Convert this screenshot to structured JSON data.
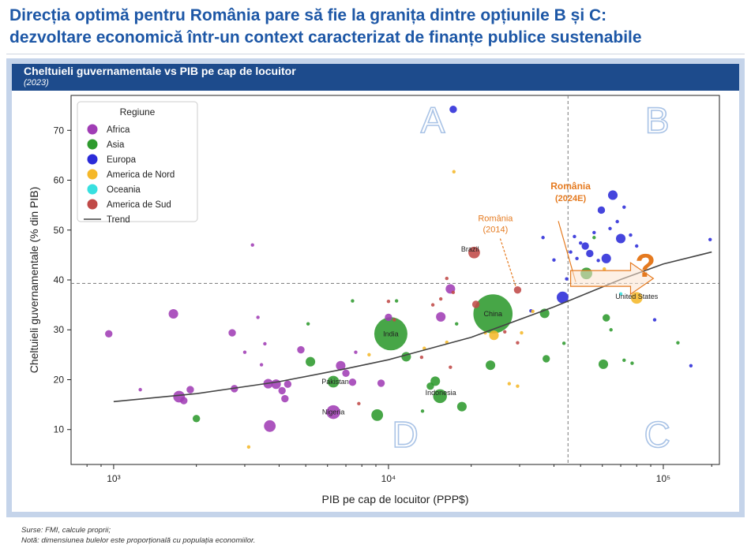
{
  "header": {
    "line1": "Direcția optimă pentru România pare să fie la granița dintre opțiunile B și C:",
    "line2": "dezvoltare economică într-un context caracterizat de finanțe publice sustenabile"
  },
  "panel": {
    "title": "Cheltuieli guvernamentale vs PIB pe cap de locuitor",
    "subtitle": "(2023)"
  },
  "footer": {
    "sources": "Surse: FMI, calcule proprii;",
    "note": "Notă: dimensiunea bulelor este proporțională cu populația economiilor."
  },
  "chart_data": {
    "type": "scatter",
    "xlabel": "PIB pe cap de locuitor (PPP$)",
    "ylabel": "Cheltuieli guvernamentale (% din PIB)",
    "x_scale": "log",
    "xlim": [
      700,
      160000
    ],
    "ylim": [
      3,
      77
    ],
    "x_ticks": [
      1000,
      10000,
      100000
    ],
    "x_tick_labels": [
      "10³",
      "10⁴",
      "10⁵"
    ],
    "y_ticks": [
      10,
      20,
      30,
      40,
      50,
      60,
      70
    ],
    "legend": {
      "title": "Regiune",
      "position": "top-left",
      "entries": [
        "Africa",
        "Asia",
        "Europa",
        "America de Nord",
        "Oceania",
        "America de Sud",
        "Trend"
      ]
    },
    "colors": {
      "Africa": "#a03db5",
      "Asia": "#2e9a2e",
      "Europa": "#2b2bd8",
      "America de Nord": "#f5b82a",
      "Oceania": "#38e0e0",
      "America de Sud": "#c04a48",
      "Trend": "#444444",
      "annotation": "#e57a1f",
      "quadrant": "#a9c3e6"
    },
    "reference_lines": {
      "x": 45000,
      "y": 39.3
    },
    "quadrant_labels": [
      "A",
      "B",
      "C",
      "D"
    ],
    "trend": {
      "x": [
        1000,
        2000,
        4000,
        7000,
        10000,
        20000,
        40000,
        70000,
        100000,
        150000
      ],
      "y": [
        15.6,
        17.2,
        19.6,
        22.2,
        24.0,
        28.5,
        34.6,
        40.1,
        43.2,
        45.6
      ]
    },
    "annotations": {
      "romania_2014": [
        "România",
        "(2014)"
      ],
      "romania_2024": [
        "România",
        "(2024E)"
      ],
      "question": "?"
    },
    "country_labels": [
      "Brazil",
      "China",
      "India",
      "United States",
      "Pakistan",
      "Indonesia",
      "Nigeria"
    ],
    "points": [
      {
        "r": "Africa",
        "x": 960,
        "y": 29.2,
        "s": 2
      },
      {
        "r": "Africa",
        "x": 1250,
        "y": 18,
        "s": 1
      },
      {
        "r": "Africa",
        "x": 1650,
        "y": 33.2,
        "s": 3
      },
      {
        "r": "Africa",
        "x": 1730,
        "y": 16.6,
        "s": 4
      },
      {
        "r": "Africa",
        "x": 1800,
        "y": 15.8,
        "s": 2
      },
      {
        "r": "Africa",
        "x": 1900,
        "y": 18,
        "s": 2
      },
      {
        "r": "Africa",
        "x": 2700,
        "y": 29.4,
        "s": 2
      },
      {
        "r": "Africa",
        "x": 2750,
        "y": 18.2,
        "s": 2
      },
      {
        "r": "Africa",
        "x": 3000,
        "y": 25.5,
        "s": 1
      },
      {
        "r": "Africa",
        "x": 3200,
        "y": 47,
        "s": 1
      },
      {
        "r": "Africa",
        "x": 3350,
        "y": 32.5,
        "s": 1
      },
      {
        "r": "Africa",
        "x": 3450,
        "y": 23,
        "s": 1
      },
      {
        "r": "Africa",
        "x": 3550,
        "y": 27.2,
        "s": 1
      },
      {
        "r": "Africa",
        "x": 3650,
        "y": 19.2,
        "s": 3
      },
      {
        "r": "Africa",
        "x": 3700,
        "y": 10.7,
        "s": 4
      },
      {
        "r": "Africa",
        "x": 3900,
        "y": 19.1,
        "s": 3
      },
      {
        "r": "Africa",
        "x": 4100,
        "y": 17.8,
        "s": 2
      },
      {
        "r": "Africa",
        "x": 4200,
        "y": 16.2,
        "s": 2
      },
      {
        "r": "Africa",
        "x": 4300,
        "y": 19.1,
        "s": 2
      },
      {
        "r": "Africa",
        "x": 4800,
        "y": 26,
        "s": 2
      },
      {
        "r": "Africa",
        "x": 6300,
        "y": 13.5,
        "s": 5
      },
      {
        "r": "Africa",
        "x": 6700,
        "y": 22.8,
        "s": 3
      },
      {
        "r": "Africa",
        "x": 7000,
        "y": 21.3,
        "s": 2
      },
      {
        "r": "Africa",
        "x": 7400,
        "y": 19.5,
        "s": 2
      },
      {
        "r": "Africa",
        "x": 7600,
        "y": 25.5,
        "s": 1
      },
      {
        "r": "Africa",
        "x": 9400,
        "y": 19.3,
        "s": 2
      },
      {
        "r": "Africa",
        "x": 10000,
        "y": 32.5,
        "s": 2
      },
      {
        "r": "Africa",
        "x": 15500,
        "y": 32.6,
        "s": 3
      },
      {
        "r": "Africa",
        "x": 16800,
        "y": 38.2,
        "s": 3
      },
      {
        "r": "Asia",
        "x": 2000,
        "y": 12.2,
        "s": 2
      },
      {
        "r": "Asia",
        "x": 5100,
        "y": 31.2,
        "s": 1
      },
      {
        "r": "Asia",
        "x": 5200,
        "y": 23.6,
        "s": 3
      },
      {
        "r": "Asia",
        "x": 6300,
        "y": 19.6,
        "s": 4
      },
      {
        "r": "Asia",
        "x": 7400,
        "y": 35.8,
        "s": 1
      },
      {
        "r": "Asia",
        "x": 9100,
        "y": 12.9,
        "s": 4
      },
      {
        "r": "Asia",
        "x": 10200,
        "y": 29.2,
        "s": 10
      },
      {
        "r": "Asia",
        "x": 10700,
        "y": 35.8,
        "s": 1
      },
      {
        "r": "Asia",
        "x": 11600,
        "y": 24.6,
        "s": 3
      },
      {
        "r": "Asia",
        "x": 13300,
        "y": 13.7,
        "s": 1
      },
      {
        "r": "Asia",
        "x": 14200,
        "y": 18.7,
        "s": 2
      },
      {
        "r": "Asia",
        "x": 14800,
        "y": 19.7,
        "s": 3
      },
      {
        "r": "Asia",
        "x": 15400,
        "y": 16.7,
        "s": 5
      },
      {
        "r": "Asia",
        "x": 17700,
        "y": 31.2,
        "s": 1
      },
      {
        "r": "Asia",
        "x": 18500,
        "y": 14.6,
        "s": 3
      },
      {
        "r": "Asia",
        "x": 23500,
        "y": 22.9,
        "s": 3
      },
      {
        "r": "Asia",
        "x": 24000,
        "y": 33.2,
        "s": 12
      },
      {
        "r": "Asia",
        "x": 37000,
        "y": 33.3,
        "s": 3
      },
      {
        "r": "Asia",
        "x": 37500,
        "y": 24.2,
        "s": 2
      },
      {
        "r": "Asia",
        "x": 43500,
        "y": 27.3,
        "s": 1
      },
      {
        "r": "Asia",
        "x": 52500,
        "y": 41.3,
        "s": 4
      },
      {
        "r": "Asia",
        "x": 56000,
        "y": 48.5,
        "s": 1
      },
      {
        "r": "Asia",
        "x": 60500,
        "y": 23.1,
        "s": 3
      },
      {
        "r": "Asia",
        "x": 62000,
        "y": 32.4,
        "s": 2
      },
      {
        "r": "Asia",
        "x": 64500,
        "y": 30,
        "s": 1
      },
      {
        "r": "Asia",
        "x": 72000,
        "y": 23.9,
        "s": 1
      },
      {
        "r": "Asia",
        "x": 77000,
        "y": 23.3,
        "s": 1
      },
      {
        "r": "Asia",
        "x": 113000,
        "y": 27.4,
        "s": 1
      },
      {
        "r": "Europa",
        "x": 17200,
        "y": 74.2,
        "s": 2
      },
      {
        "r": "Europa",
        "x": 33000,
        "y": 33.8,
        "s": 1
      },
      {
        "r": "Europa",
        "x": 36500,
        "y": 48.5,
        "s": 1
      },
      {
        "r": "Europa",
        "x": 40000,
        "y": 44,
        "s": 1
      },
      {
        "r": "Europa",
        "x": 43000,
        "y": 36.5,
        "s": 4
      },
      {
        "r": "Europa",
        "x": 44500,
        "y": 40.2,
        "s": 1
      },
      {
        "r": "Europa",
        "x": 46000,
        "y": 45.6,
        "s": 1
      },
      {
        "r": "Europa",
        "x": 47500,
        "y": 48.7,
        "s": 1
      },
      {
        "r": "Europa",
        "x": 48500,
        "y": 44.3,
        "s": 1
      },
      {
        "r": "Europa",
        "x": 50000,
        "y": 47.4,
        "s": 1
      },
      {
        "r": "Europa",
        "x": 52000,
        "y": 46.8,
        "s": 2
      },
      {
        "r": "Europa",
        "x": 54000,
        "y": 45.3,
        "s": 2
      },
      {
        "r": "Europa",
        "x": 56000,
        "y": 49.5,
        "s": 1
      },
      {
        "r": "Europa",
        "x": 58000,
        "y": 43.9,
        "s": 1
      },
      {
        "r": "Europa",
        "x": 59500,
        "y": 54,
        "s": 2
      },
      {
        "r": "Europa",
        "x": 62000,
        "y": 44.3,
        "s": 3
      },
      {
        "r": "Europa",
        "x": 64000,
        "y": 50.3,
        "s": 1
      },
      {
        "r": "Europa",
        "x": 65500,
        "y": 57,
        "s": 3
      },
      {
        "r": "Europa",
        "x": 68000,
        "y": 51.7,
        "s": 1
      },
      {
        "r": "Europa",
        "x": 70000,
        "y": 48.3,
        "s": 3
      },
      {
        "r": "Europa",
        "x": 72000,
        "y": 54.6,
        "s": 1
      },
      {
        "r": "Europa",
        "x": 76000,
        "y": 49,
        "s": 1
      },
      {
        "r": "Europa",
        "x": 80000,
        "y": 46.8,
        "s": 1
      },
      {
        "r": "Europa",
        "x": 85000,
        "y": 44.8,
        "s": 1
      },
      {
        "r": "Europa",
        "x": 93000,
        "y": 32,
        "s": 1
      },
      {
        "r": "Europa",
        "x": 126000,
        "y": 22.8,
        "s": 1
      },
      {
        "r": "Europa",
        "x": 148000,
        "y": 48.1,
        "s": 1
      },
      {
        "r": "America de Nord",
        "x": 3100,
        "y": 6.5,
        "s": 1
      },
      {
        "r": "America de Nord",
        "x": 8500,
        "y": 25,
        "s": 1
      },
      {
        "r": "America de Nord",
        "x": 13500,
        "y": 26.3,
        "s": 1
      },
      {
        "r": "America de Nord",
        "x": 16300,
        "y": 27.5,
        "s": 1
      },
      {
        "r": "America de Nord",
        "x": 17300,
        "y": 61.7,
        "s": 1
      },
      {
        "r": "America de Nord",
        "x": 22500,
        "y": 29.4,
        "s": 1
      },
      {
        "r": "America de Nord",
        "x": 24200,
        "y": 28.9,
        "s": 3
      },
      {
        "r": "America de Nord",
        "x": 27500,
        "y": 19.2,
        "s": 1
      },
      {
        "r": "America de Nord",
        "x": 29500,
        "y": 18.7,
        "s": 1
      },
      {
        "r": "America de Nord",
        "x": 30500,
        "y": 29.4,
        "s": 1
      },
      {
        "r": "America de Nord",
        "x": 33500,
        "y": 33.7,
        "s": 1
      },
      {
        "r": "America de Nord",
        "x": 61000,
        "y": 42.2,
        "s": 1
      },
      {
        "r": "America de Nord",
        "x": 80000,
        "y": 36.4,
        "s": 4
      },
      {
        "r": "Oceania",
        "x": 70000,
        "y": 37.2,
        "s": 1
      },
      {
        "r": "America de Sud",
        "x": 7800,
        "y": 15.2,
        "s": 1
      },
      {
        "r": "America de Sud",
        "x": 10000,
        "y": 35.7,
        "s": 1
      },
      {
        "r": "America de Sud",
        "x": 10500,
        "y": 32,
        "s": 1
      },
      {
        "r": "America de Sud",
        "x": 13200,
        "y": 24.5,
        "s": 1
      },
      {
        "r": "America de Sud",
        "x": 14500,
        "y": 35,
        "s": 1
      },
      {
        "r": "America de Sud",
        "x": 15500,
        "y": 36.2,
        "s": 1
      },
      {
        "r": "America de Sud",
        "x": 16300,
        "y": 40.3,
        "s": 1
      },
      {
        "r": "America de Sud",
        "x": 16800,
        "y": 22.5,
        "s": 1
      },
      {
        "r": "America de Sud",
        "x": 17200,
        "y": 37.5,
        "s": 1
      },
      {
        "r": "America de Sud",
        "x": 20500,
        "y": 45.5,
        "s": 4
      },
      {
        "r": "America de Sud",
        "x": 20800,
        "y": 35.1,
        "s": 2
      },
      {
        "r": "America de Sud",
        "x": 26500,
        "y": 29.6,
        "s": 1
      },
      {
        "r": "America de Sud",
        "x": 29500,
        "y": 27.4,
        "s": 1
      },
      {
        "r": "America de Sud",
        "x": 29500,
        "y": 38,
        "s": 2
      }
    ]
  }
}
